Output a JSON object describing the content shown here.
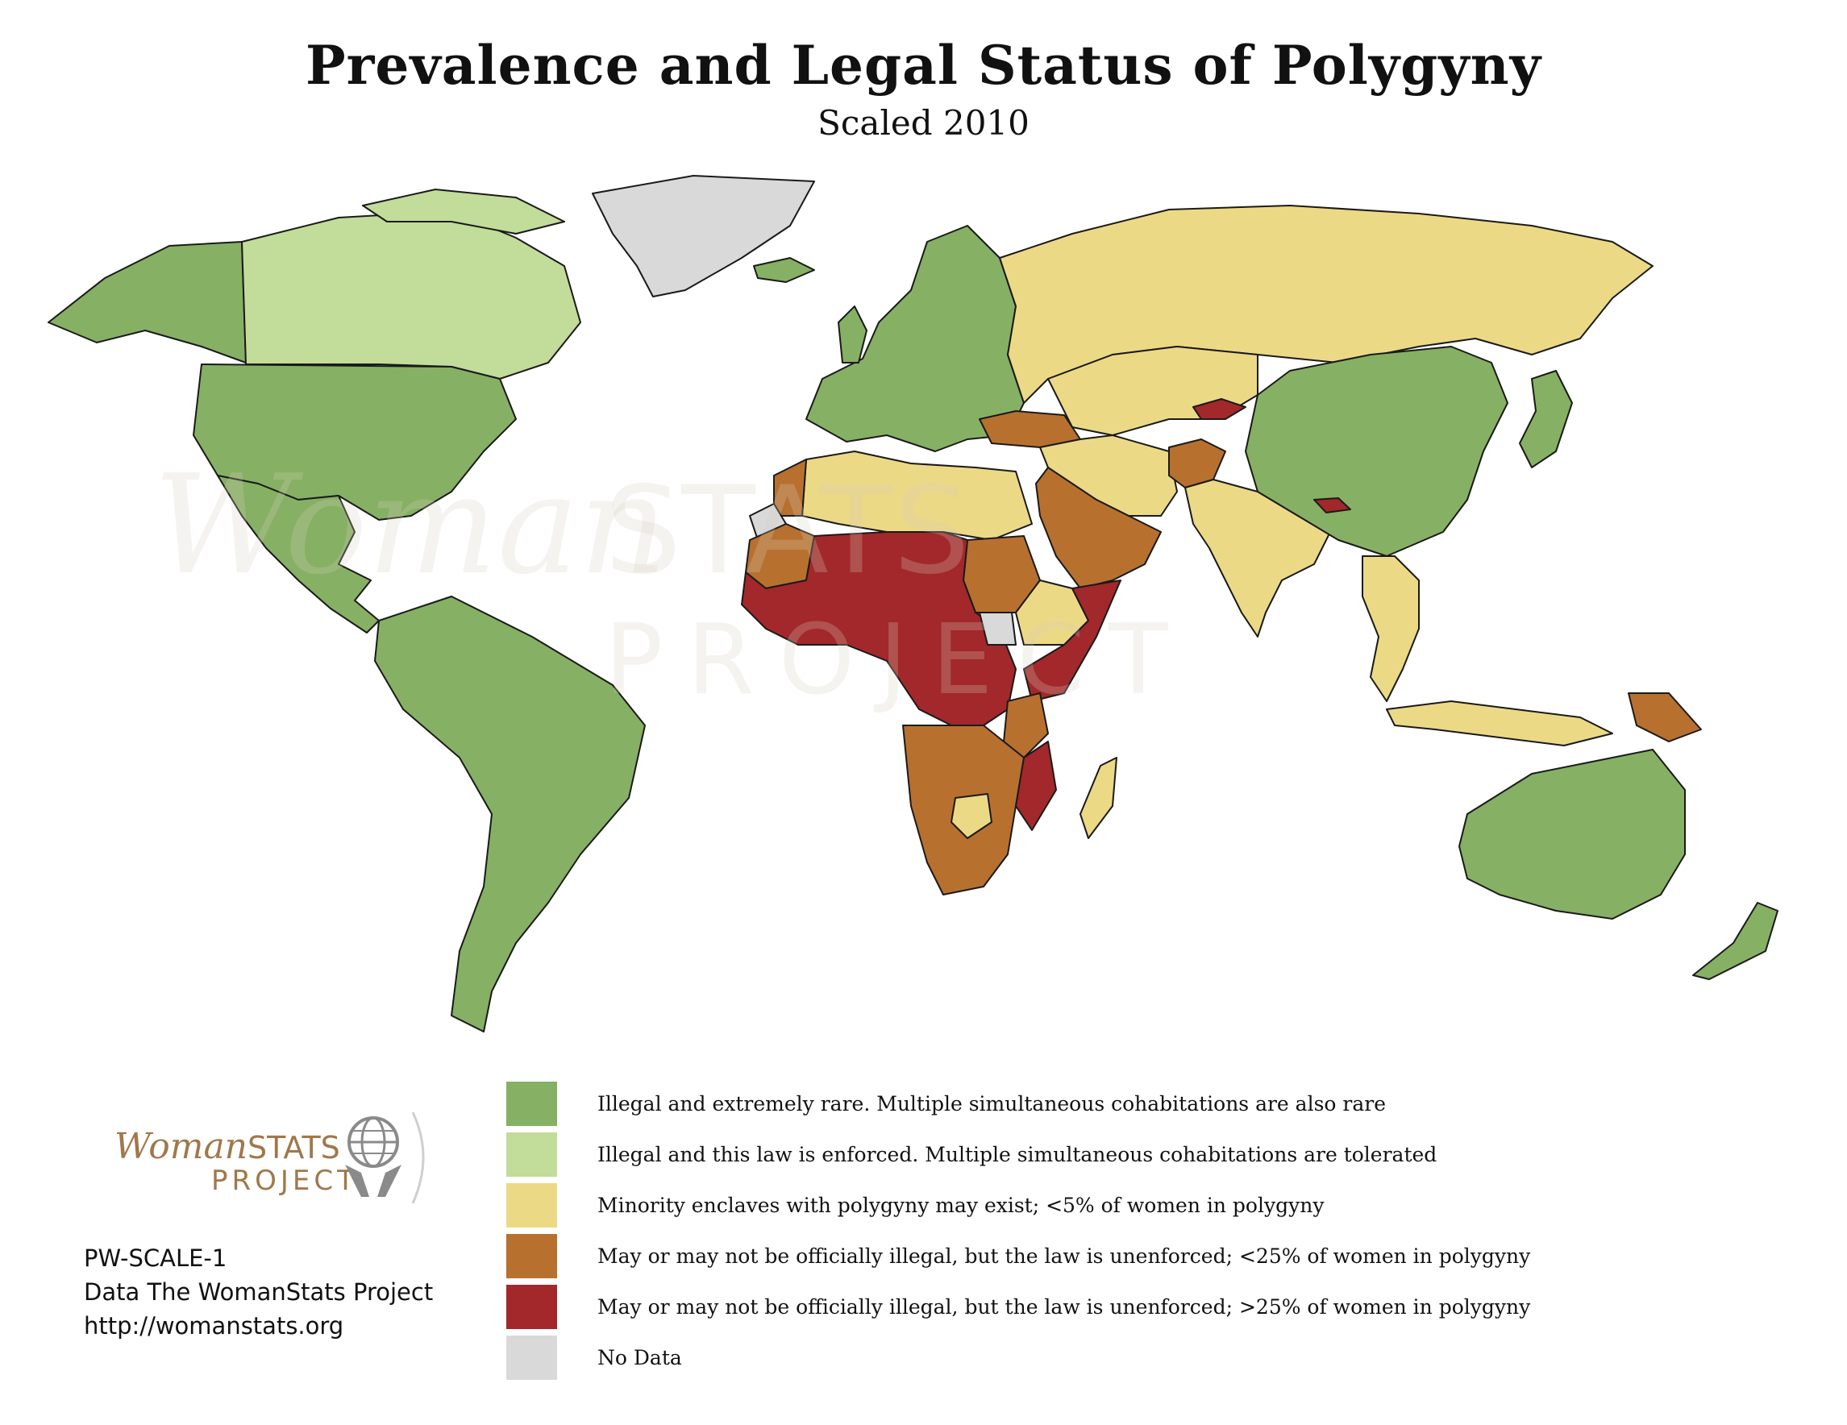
{
  "title": "Prevalence and Legal Status of Polygyny",
  "subtitle": "Scaled 2010",
  "colors": {
    "illegal_rare": "#86b063",
    "illegal_enforced": "#c2dc9a",
    "minority_enclaves": "#ecd985",
    "unenforced_lt25": "#b8702f",
    "unenforced_gt25": "#a2282b",
    "no_data": "#d9d9d9",
    "border": "#1a1a1a"
  },
  "legend": {
    "items": [
      {
        "key": "illegal_rare",
        "label": "Illegal and extremely rare. Multiple simultaneous cohabitations are also rare"
      },
      {
        "key": "illegal_enforced",
        "label": "Illegal and this law is enforced. Multiple simultaneous cohabitations are tolerated"
      },
      {
        "key": "minority_enclaves",
        "label": "Minority enclaves with polygyny may exist; <5% of women in polygyny"
      },
      {
        "key": "unenforced_lt25",
        "label": "May or may not be officially illegal, but the law is unenforced; <25% of women in polygyny"
      },
      {
        "key": "unenforced_gt25",
        "label": "May or may not be officially illegal, but the law is unenforced; >25% of women in polygyny"
      },
      {
        "key": "no_data",
        "label": "No Data"
      }
    ]
  },
  "logo": {
    "word_part1": "Woman",
    "word_part2": "STATS",
    "project": "PROJECT"
  },
  "credits": {
    "code": "PW-SCALE-1",
    "source": "Data The WomanStats Project",
    "url": "http://womanstats.org"
  },
  "watermark": {
    "word_part1": "Woman",
    "word_part2": "STATS",
    "project": "PROJECT"
  }
}
